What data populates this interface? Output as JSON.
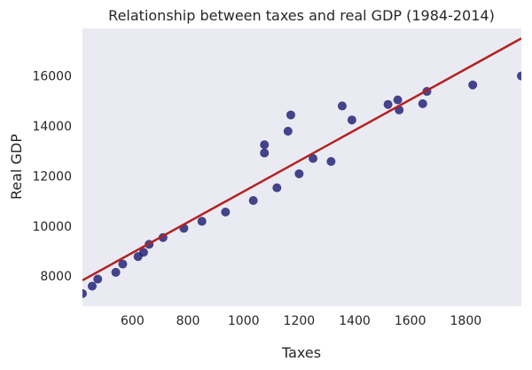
{
  "chart_data": {
    "type": "scatter",
    "title": "Relationship between taxes and real GDP (1984-2014)",
    "xlabel": "Taxes",
    "ylabel": "Real GDP",
    "xlim": [
      420,
      2000
    ],
    "ylim": [
      6800,
      17900
    ],
    "xticks": [
      600,
      800,
      1000,
      1200,
      1400,
      1600,
      1800
    ],
    "yticks": [
      8000,
      10000,
      12000,
      14000,
      16000
    ],
    "grid": false,
    "background": "#eaeaf2",
    "point_color": "#191970",
    "line_color": "#b22222",
    "points": [
      {
        "x": 420,
        "y": 7300
      },
      {
        "x": 455,
        "y": 7600
      },
      {
        "x": 475,
        "y": 7880
      },
      {
        "x": 540,
        "y": 8150
      },
      {
        "x": 565,
        "y": 8480
      },
      {
        "x": 620,
        "y": 8780
      },
      {
        "x": 640,
        "y": 8950
      },
      {
        "x": 660,
        "y": 9270
      },
      {
        "x": 710,
        "y": 9540
      },
      {
        "x": 785,
        "y": 9910
      },
      {
        "x": 850,
        "y": 10190
      },
      {
        "x": 935,
        "y": 10560
      },
      {
        "x": 1035,
        "y": 11020
      },
      {
        "x": 1075,
        "y": 13250
      },
      {
        "x": 1075,
        "y": 12920
      },
      {
        "x": 1120,
        "y": 11530
      },
      {
        "x": 1160,
        "y": 13790
      },
      {
        "x": 1170,
        "y": 14440
      },
      {
        "x": 1200,
        "y": 12090
      },
      {
        "x": 1250,
        "y": 12700
      },
      {
        "x": 1315,
        "y": 12580
      },
      {
        "x": 1355,
        "y": 14800
      },
      {
        "x": 1390,
        "y": 14240
      },
      {
        "x": 1520,
        "y": 14860
      },
      {
        "x": 1555,
        "y": 15040
      },
      {
        "x": 1560,
        "y": 14640
      },
      {
        "x": 1645,
        "y": 14890
      },
      {
        "x": 1660,
        "y": 15380
      },
      {
        "x": 1825,
        "y": 15640
      },
      {
        "x": 2000,
        "y": 16000
      }
    ],
    "regression": {
      "x": [
        420,
        2000
      ],
      "y": [
        7830,
        17500
      ]
    }
  }
}
